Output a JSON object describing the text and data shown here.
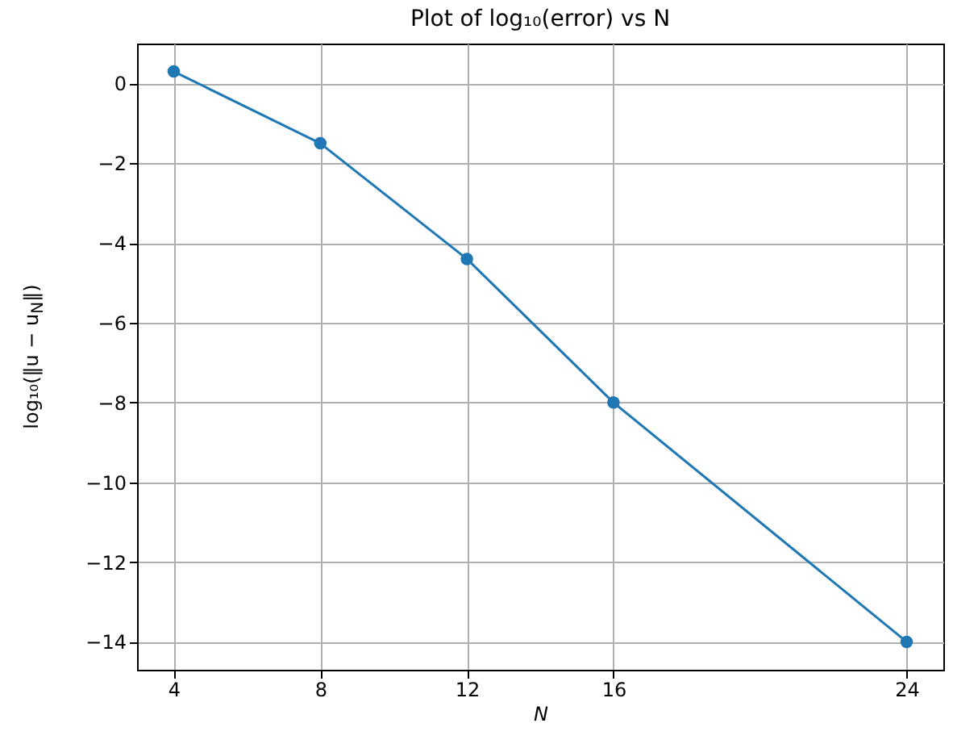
{
  "chart_data": {
    "type": "line",
    "title": "Plot of log₁₀(error) vs N",
    "xlabel": "N",
    "ylabel": "log₁₀(‖u − u$_{N}$‖)",
    "x": [
      4,
      8,
      12,
      16,
      24
    ],
    "series": [
      {
        "color": "#1f77b4",
        "values": [
          0.3,
          -1.5,
          -4.4,
          -8.0,
          -14.0
        ]
      }
    ],
    "xlim": [
      3,
      25
    ],
    "xticks": [
      4,
      8,
      12,
      16,
      24
    ],
    "ylim": [
      -14.7,
      1.0
    ],
    "yticks": [
      -14,
      -12,
      -10,
      -8,
      -6,
      -4,
      -2,
      0
    ],
    "grid": true,
    "marker": "circle",
    "line_style": "solid"
  }
}
